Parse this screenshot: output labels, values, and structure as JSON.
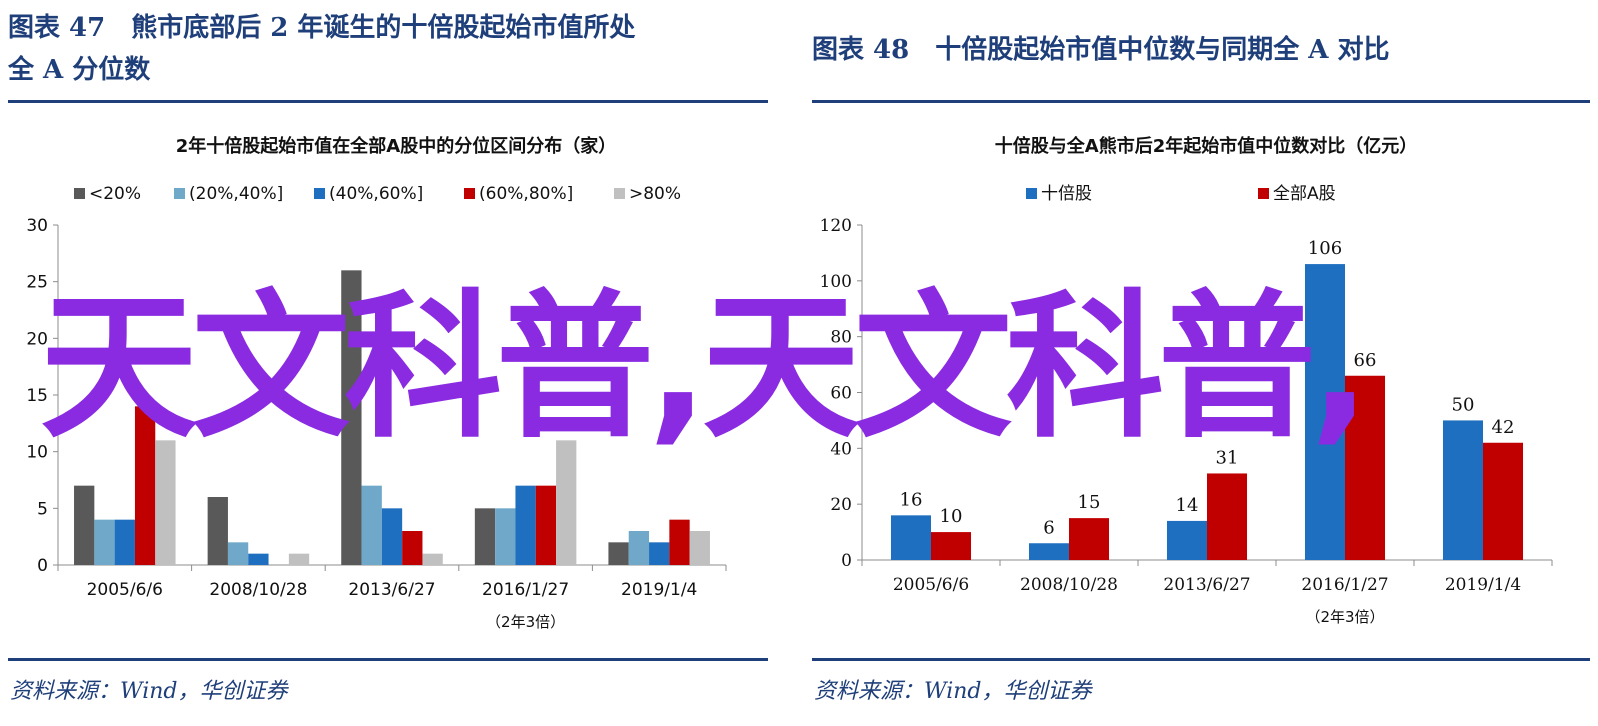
{
  "left_figure": {
    "title_line1": "图表 47　熊市底部后 2 年诞生的十倍股起始市值所处",
    "title_line2": "全 A 分位数",
    "source": "资料来源：Wind，华创证券"
  },
  "right_figure": {
    "title": "图表 48　十倍股起始市值中位数与同期全 A 对比",
    "source": "资料来源：Wind，华创证券"
  },
  "overlay_text": "天文科普,天文科普,",
  "chart_data": [
    {
      "type": "bar",
      "title": "2年十倍股起始市值在全部A股中的分位区间分布（家）",
      "categories": [
        "2005/6/6",
        "2008/10/28",
        "2013/6/27",
        "2016/1/27",
        "2019/1/4"
      ],
      "category_note": "（2年3倍）",
      "series": [
        {
          "name": "<20%",
          "color": "#595959",
          "values": [
            7,
            6,
            26,
            5,
            2
          ]
        },
        {
          "name": "(20%,40%]",
          "color": "#6fa8c8",
          "values": [
            4,
            2,
            7,
            5,
            3
          ]
        },
        {
          "name": "(40%,60%]",
          "color": "#1f6fc0",
          "values": [
            4,
            1,
            5,
            7,
            2
          ]
        },
        {
          "name": "(60%,80%]",
          "color": "#c00000",
          "values": [
            14,
            0,
            3,
            7,
            4
          ]
        },
        {
          "name": ">80%",
          "color": "#c0c0c0",
          "values": [
            11,
            1,
            1,
            11,
            3
          ]
        }
      ],
      "ylim": [
        0,
        30
      ],
      "yticks": [
        0,
        5,
        10,
        15,
        20,
        25,
        30
      ],
      "grid": false,
      "legend": "top"
    },
    {
      "type": "bar",
      "title": "十倍股与全A熊市后2年起始市值中位数对比（亿元）",
      "categories": [
        "2005/6/6",
        "2008/10/28",
        "2013/6/27",
        "2016/1/27",
        "2019/1/4"
      ],
      "category_note": "（2年3倍）",
      "series": [
        {
          "name": "十倍股",
          "color": "#1f6fc0",
          "values": [
            16,
            6,
            14,
            106,
            50
          ]
        },
        {
          "name": "全部A股",
          "color": "#c00000",
          "values": [
            10,
            15,
            31,
            66,
            42
          ]
        }
      ],
      "ylim": [
        0,
        120
      ],
      "yticks": [
        0,
        20,
        40,
        60,
        80,
        100,
        120
      ],
      "data_labels": true,
      "grid": false,
      "legend": "top"
    }
  ]
}
